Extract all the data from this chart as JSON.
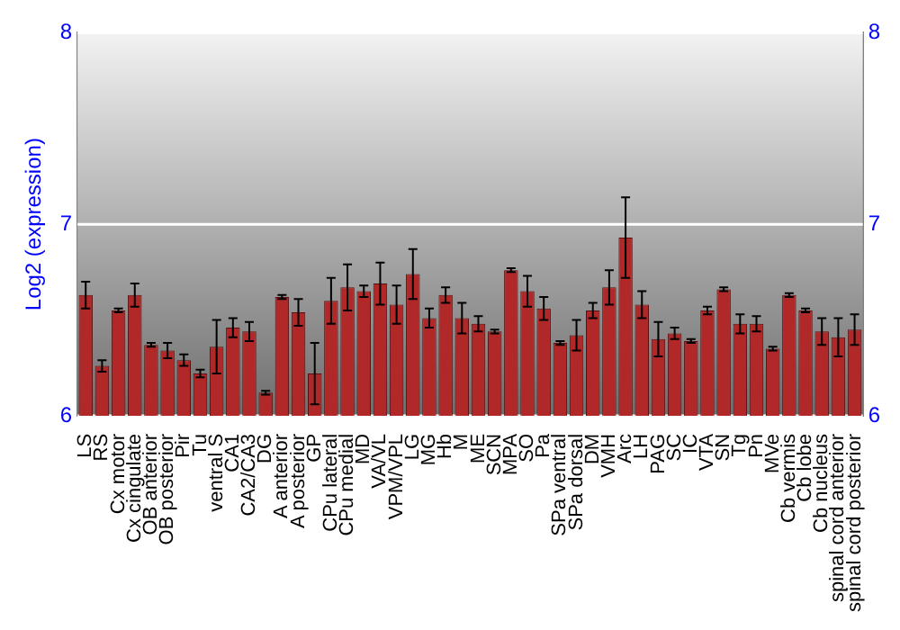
{
  "chart_data": {
    "type": "bar",
    "ylabel": "Log2 (expression)",
    "categories": [
      "LS",
      "RS",
      "Cx motor",
      "Cx cingulate",
      "OB anterior",
      "OB posterior",
      "Pir",
      "Tu",
      "ventral S",
      "CA1",
      "CA2/CA3",
      "DG",
      "A anterior",
      "A posterior",
      "GP",
      "CPu lateral",
      "CPu medial",
      "MD",
      "VA/VL",
      "VPM/VPL",
      "LG",
      "MG",
      "Hb",
      "M",
      "ME",
      "SCN",
      "MPA",
      "SO",
      "Pa",
      "SPa ventral",
      "SPa dorsal",
      "DM",
      "VMH",
      "Arc",
      "LH",
      "PAG",
      "SC",
      "IC",
      "VTA",
      "SN",
      "Tg",
      "Pn",
      "MVe",
      "Cb vermis",
      "Cb lobe",
      "Cb nucleus",
      "spinal cord anterior",
      "spinal cord posterior"
    ],
    "values": [
      6.63,
      6.26,
      6.55,
      6.63,
      6.37,
      6.34,
      6.29,
      6.22,
      6.36,
      6.46,
      6.44,
      6.12,
      6.62,
      6.54,
      6.22,
      6.6,
      6.67,
      6.65,
      6.69,
      6.58,
      6.74,
      6.51,
      6.63,
      6.51,
      6.48,
      6.44,
      6.76,
      6.65,
      6.56,
      6.38,
      6.42,
      6.55,
      6.67,
      6.93,
      6.58,
      6.4,
      6.43,
      6.39,
      6.55,
      6.66,
      6.48,
      6.48,
      6.35,
      6.63,
      6.55,
      6.44,
      6.41,
      6.45
    ],
    "errors": [
      0.07,
      0.03,
      0.01,
      0.06,
      0.01,
      0.04,
      0.03,
      0.02,
      0.14,
      0.05,
      0.05,
      0.01,
      0.01,
      0.07,
      0.16,
      0.12,
      0.12,
      0.03,
      0.11,
      0.1,
      0.13,
      0.05,
      0.04,
      0.08,
      0.04,
      0.01,
      0.01,
      0.08,
      0.06,
      0.01,
      0.08,
      0.04,
      0.09,
      0.21,
      0.07,
      0.09,
      0.03,
      0.01,
      0.02,
      0.01,
      0.05,
      0.04,
      0.01,
      0.01,
      0.01,
      0.07,
      0.1,
      0.08
    ],
    "color": "#b02828",
    "ylim": [
      6,
      8
    ],
    "yticks": [
      6,
      7,
      8
    ],
    "y2lim": [
      6,
      8
    ],
    "y2ticks": [
      6,
      7,
      8
    ],
    "grid": "y"
  }
}
